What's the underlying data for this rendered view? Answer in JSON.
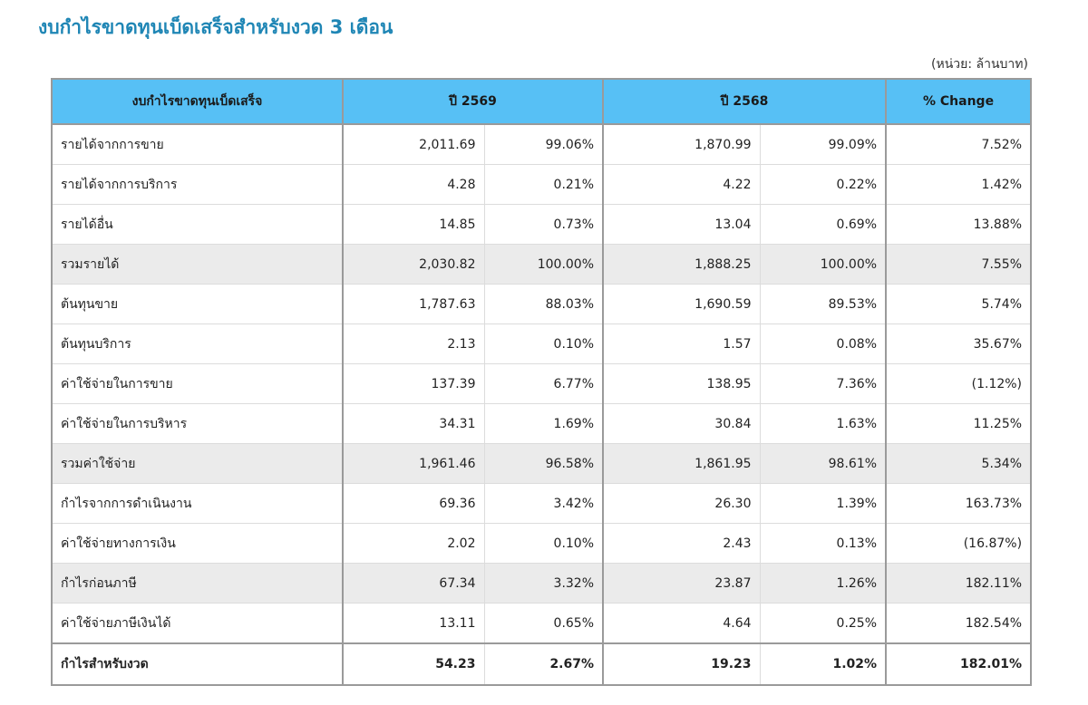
{
  "title": "งบกำไรขาดทุนเบ็ดเสร็จสำหรับงวด 3 เดือน",
  "unit_note": "(หน่วย: ล้านบาท)",
  "headers": {
    "item": "งบกำไรขาดทุนเบ็ดเสร็จ",
    "year1": "ปี 2569",
    "year2": "ปี 2568",
    "change": "% Change"
  },
  "rows": [
    {
      "label": "รายได้จากการขาย",
      "v1": "2,011.69",
      "p1": "99.06%",
      "v2": "1,870.99",
      "p2": "99.09%",
      "chg": "7.52%"
    },
    {
      "label": "รายได้จากการบริการ",
      "v1": "4.28",
      "p1": "0.21%",
      "v2": "4.22",
      "p2": "0.22%",
      "chg": "1.42%"
    },
    {
      "label": "รายได้อื่น",
      "v1": "14.85",
      "p1": "0.73%",
      "v2": "13.04",
      "p2": "0.69%",
      "chg": "13.88%"
    },
    {
      "label": "รวมรายได้",
      "v1": "2,030.82",
      "p1": "100.00%",
      "v2": "1,888.25",
      "p2": "100.00%",
      "chg": "7.55%"
    },
    {
      "label": "ต้นทุนขาย",
      "v1": "1,787.63",
      "p1": "88.03%",
      "v2": "1,690.59",
      "p2": "89.53%",
      "chg": "5.74%"
    },
    {
      "label": "ต้นทุนบริการ",
      "v1": "2.13",
      "p1": "0.10%",
      "v2": "1.57",
      "p2": "0.08%",
      "chg": "35.67%"
    },
    {
      "label": "ค่าใช้จ่ายในการขาย",
      "v1": "137.39",
      "p1": "6.77%",
      "v2": "138.95",
      "p2": "7.36%",
      "chg": "(1.12%)"
    },
    {
      "label": "ค่าใช้จ่ายในการบริหาร",
      "v1": "34.31",
      "p1": "1.69%",
      "v2": "30.84",
      "p2": "1.63%",
      "chg": "11.25%"
    },
    {
      "label": "รวมค่าใช้จ่าย",
      "v1": "1,961.46",
      "p1": "96.58%",
      "v2": "1,861.95",
      "p2": "98.61%",
      "chg": "5.34%"
    },
    {
      "label": "กำไรจากการดำเนินงาน",
      "v1": "69.36",
      "p1": "3.42%",
      "v2": "26.30",
      "p2": "1.39%",
      "chg": "163.73%"
    },
    {
      "label": "ค่าใช้จ่ายทางการเงิน",
      "v1": "2.02",
      "p1": "0.10%",
      "v2": "2.43",
      "p2": "0.13%",
      "chg": "(16.87%)"
    },
    {
      "label": "กำไรก่อนภาษี",
      "v1": "67.34",
      "p1": "3.32%",
      "v2": "23.87",
      "p2": "1.26%",
      "chg": "182.11%"
    },
    {
      "label": "ค่าใช้จ่ายภาษีเงินได้",
      "v1": "13.11",
      "p1": "0.65%",
      "v2": "4.64",
      "p2": "0.25%",
      "chg": "182.54%"
    },
    {
      "label": "กำไรสำหรับงวด",
      "v1": "54.23",
      "p1": "2.67%",
      "v2": "19.23",
      "p2": "1.02%",
      "chg": "182.01%"
    }
  ],
  "colors": {
    "header_bg": "#57c0f5",
    "title": "#1f86b5",
    "subtotal_bg": "#ebebeb"
  }
}
